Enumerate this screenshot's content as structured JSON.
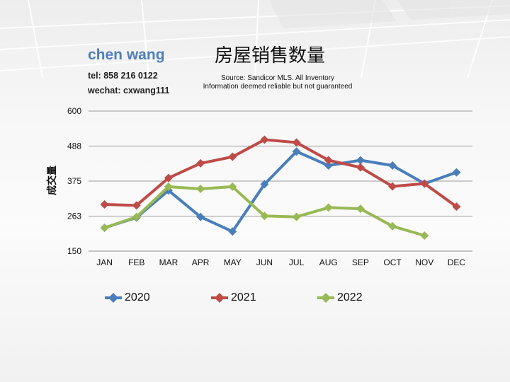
{
  "agent": {
    "name": "chen wang",
    "tel": "tel: 858 216 0122",
    "wechat": "wechat: cxwang111"
  },
  "title": "房屋销售数量",
  "source_line1": "Source: Sandicor MLS. All Inventory",
  "source_line2": "Information deemed reliable but not guaranteed",
  "chart_data": {
    "type": "line",
    "title": "房屋销售数量",
    "ylabel": "成交量",
    "xlabel": "",
    "categories": [
      "JAN",
      "FEB",
      "MAR",
      "APR",
      "MAY",
      "JUN",
      "JUL",
      "AUG",
      "SEP",
      "OCT",
      "NOV",
      "DEC"
    ],
    "yticks": [
      "600",
      "488",
      "375",
      "263",
      "150"
    ],
    "ylim": [
      150,
      600
    ],
    "grid": true,
    "legend_position": "bottom",
    "series": [
      {
        "name": "2020",
        "color": "#4a7ebb",
        "values": [
          225,
          258,
          345,
          260,
          213,
          365,
          470,
          425,
          442,
          425,
          367,
          403
        ]
      },
      {
        "name": "2021",
        "color": "#be4b48",
        "values": [
          300,
          297,
          385,
          432,
          453,
          508,
          499,
          442,
          419,
          358,
          367,
          293
        ]
      },
      {
        "name": "2022",
        "color": "#98b954",
        "values": [
          225,
          260,
          357,
          350,
          357,
          263,
          260,
          290,
          286,
          230,
          200,
          null
        ]
      }
    ]
  }
}
